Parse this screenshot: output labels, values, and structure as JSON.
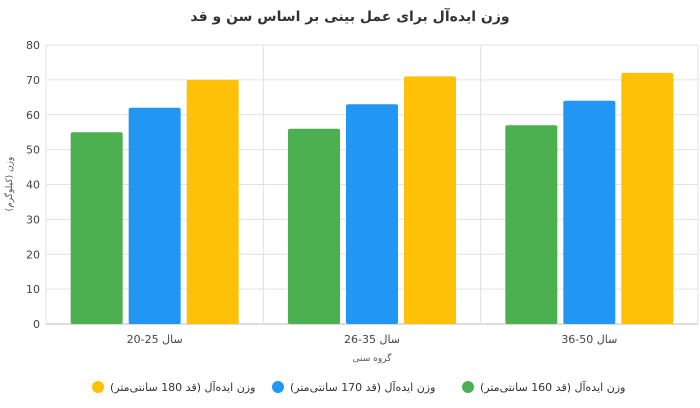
{
  "chart_data": {
    "type": "bar",
    "title": "وزن ایده‌آل برای عمل بینی بر اساس سن و قد",
    "xlabel": "گروه سنی",
    "ylabel": "وزن (کیلوگرم)",
    "ylim": [
      0,
      80
    ],
    "yticks": [
      0,
      10,
      20,
      30,
      40,
      50,
      60,
      70,
      80
    ],
    "categories": [
      "20-25 سال",
      "26-35 سال",
      "36-50 سال"
    ],
    "series": [
      {
        "name": "وزن ایده‌آل (قد 160 سانتی‌متر)",
        "color": "#4caf50",
        "values": [
          55,
          56,
          57
        ]
      },
      {
        "name": "وزن ایده‌آل (قد 170 سانتی‌متر)",
        "color": "#2196f3",
        "values": [
          62,
          63,
          64
        ]
      },
      {
        "name": "وزن ایده‌آل (قد 180 سانتی‌متر)",
        "color": "#ffc107",
        "values": [
          70,
          71,
          72
        ]
      }
    ],
    "grid": true,
    "legend_position": "bottom"
  }
}
